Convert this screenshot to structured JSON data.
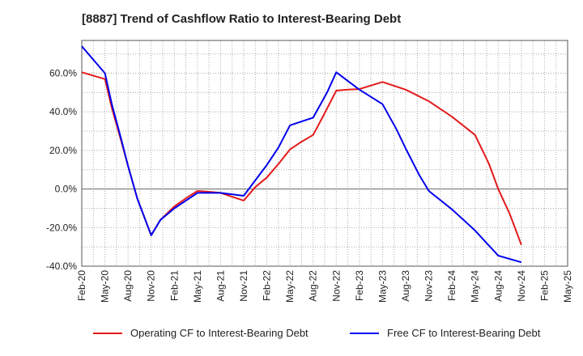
{
  "chart_data": {
    "type": "line",
    "title": "[8887]  Trend of Cashflow Ratio to Interest-Bearing Debt",
    "xlabel": "",
    "ylabel": "",
    "categories": [
      "Feb-20",
      "May-20",
      "Aug-20",
      "Nov-20",
      "Feb-21",
      "May-21",
      "Aug-21",
      "Nov-21",
      "Feb-22",
      "May-22",
      "Aug-22",
      "Nov-22",
      "Feb-23",
      "May-23",
      "Aug-23",
      "Nov-23",
      "Feb-24",
      "May-24",
      "Aug-24",
      "Nov-24",
      "Feb-25",
      "May-25"
    ],
    "ylim": [
      -40,
      77
    ],
    "yticks": [
      -40,
      -20,
      0,
      20,
      40,
      60
    ],
    "ytick_labels": [
      "-40.0%",
      "-20.0%",
      "0.0%",
      "20.0%",
      "40.0%",
      "60.0%"
    ],
    "grid": true,
    "legend_position": "bottom",
    "series": [
      {
        "name": "Operating CF to Interest-Bearing Debt",
        "color": "#e31a1c",
        "x": [
          0,
          1,
          1.3,
          1.7,
          2,
          2.4,
          3,
          3.4,
          4,
          4.6,
          5,
          5.6,
          6,
          6.5,
          7,
          7.5,
          8,
          8.5,
          9,
          9.5,
          10,
          10.4,
          11,
          11.5,
          12,
          13,
          14,
          15,
          16,
          17,
          17.6,
          18,
          18.5,
          19
        ],
        "values": [
          60.5,
          57,
          42,
          25,
          12,
          -5,
          -24,
          -16,
          -9,
          -4,
          -1,
          -1.5,
          -2,
          -4,
          -6,
          1,
          6,
          13,
          20.5,
          24.5,
          28,
          37,
          51,
          51.5,
          51.8,
          55.5,
          51.5,
          45.5,
          37.5,
          28,
          13,
          0,
          -13,
          -29
        ]
      },
      {
        "name": "Free CF to Interest-Bearing Debt",
        "color": "#0000ee",
        "x": [
          0,
          1,
          1.3,
          1.7,
          2,
          2.4,
          3,
          3.4,
          4,
          5,
          6,
          7,
          7.5,
          8,
          8.5,
          9,
          10,
          10.6,
          11,
          12,
          13,
          13.6,
          14,
          14.6,
          15,
          16,
          17,
          18,
          19
        ],
        "values": [
          74,
          60,
          44,
          26,
          12,
          -5,
          -24,
          -16,
          -10,
          -2,
          -2,
          -3.5,
          4.5,
          12.5,
          21.5,
          33,
          37,
          50,
          60.5,
          51.5,
          44,
          31,
          21,
          7,
          -1,
          -10.5,
          -21.5,
          -34.5,
          -38
        ]
      }
    ]
  }
}
